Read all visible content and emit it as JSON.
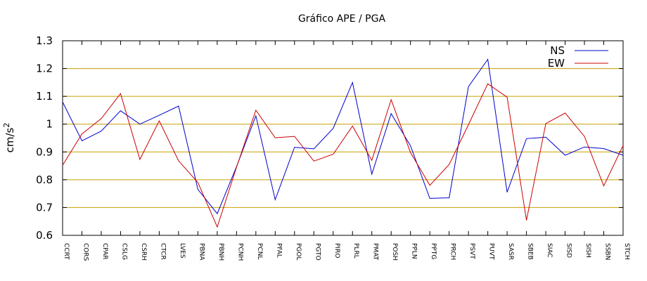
{
  "chart_data": {
    "type": "line",
    "title": "Gráfico  APE / PGA",
    "xlabel": "",
    "ylabel": "cm/s",
    "ylabel_superscript": "2",
    "ylim": [
      0.6,
      1.3
    ],
    "yticks": [
      0.6,
      0.7,
      0.8,
      0.9,
      1.0,
      1.1,
      1.2,
      1.3
    ],
    "ytick_labels": [
      "0.6",
      "0.7",
      "0.8",
      "0.9",
      "1",
      "1.1",
      "1.2",
      "1.3"
    ],
    "grid": "horizontal",
    "legend_position": "top-right",
    "categories": [
      "CCRT",
      "CORS",
      "CPAR",
      "CSLG",
      "CSRH",
      "CTCR",
      "LVES",
      "PBNA",
      "PBNH",
      "PCNH",
      "PCNL",
      "PFAL",
      "PGOL",
      "PGTO",
      "PIRO",
      "PLRL",
      "PMAT",
      "POSH",
      "PPLN",
      "PPTG",
      "PRCH",
      "PSVT",
      "PUVT",
      "SASR",
      "SBEB",
      "SIAC",
      "SISD",
      "SISH",
      "SSBN",
      "STCH"
    ],
    "series": [
      {
        "name": "NS",
        "color": "#0000cc",
        "values": [
          1.08,
          0.94,
          0.975,
          1.048,
          1.0,
          1.032,
          1.065,
          0.765,
          0.678,
          0.847,
          1.03,
          0.728,
          0.917,
          0.911,
          0.985,
          1.15,
          0.82,
          1.038,
          0.922,
          0.733,
          0.735,
          1.135,
          1.233,
          0.755,
          0.948,
          0.953,
          0.888,
          0.918,
          0.912,
          0.888
        ]
      },
      {
        "name": "EW",
        "color": "#cc0000",
        "values": [
          0.852,
          0.965,
          1.02,
          1.11,
          0.873,
          1.012,
          0.868,
          0.79,
          0.63,
          0.845,
          1.05,
          0.951,
          0.956,
          0.867,
          0.892,
          0.993,
          0.87,
          1.088,
          0.898,
          0.78,
          0.855,
          0.998,
          1.145,
          1.097,
          0.654,
          1.002,
          1.04,
          0.956,
          0.778,
          0.923
        ]
      }
    ]
  }
}
